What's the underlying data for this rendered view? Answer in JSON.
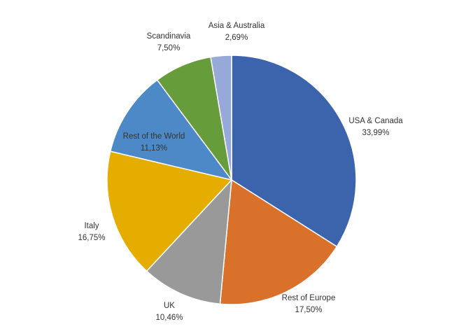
{
  "chart_data": {
    "type": "pie",
    "title": "",
    "slices": [
      {
        "label": "USA & Canada",
        "value_text": "33,99%",
        "value": 33.99,
        "color": "#3B64AD"
      },
      {
        "label": "Rest of Europe",
        "value_text": "17,50%",
        "value": 17.5,
        "color": "#D9712B"
      },
      {
        "label": "UK",
        "value_text": "10,46%",
        "value": 10.46,
        "color": "#999999"
      },
      {
        "label": "Italy",
        "value_text": "16,75%",
        "value": 16.75,
        "color": "#E5AD00"
      },
      {
        "label": "Rest of the World",
        "value_text": "11,13%",
        "value": 11.13,
        "color": "#4C89C6"
      },
      {
        "label": "Scandinavia",
        "value_text": "7,50%",
        "value": 7.5,
        "color": "#679C3A"
      },
      {
        "label": "Asia & Australia",
        "value_text": "2,69%",
        "value": 2.69,
        "color": "#97A9D9"
      }
    ]
  }
}
